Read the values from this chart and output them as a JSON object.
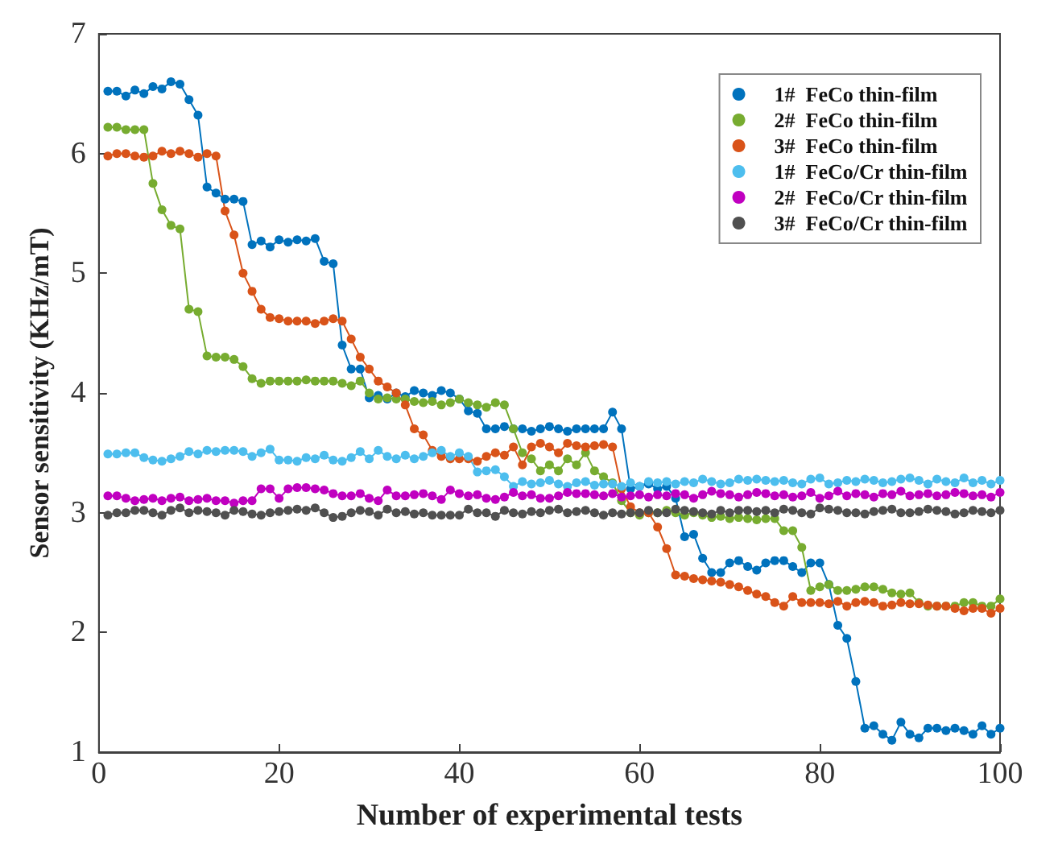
{
  "chart_data": {
    "type": "line",
    "xlabel": "Number of experimental tests",
    "ylabel": "Sensor sensitivity (KHz/mT)",
    "x": [
      1,
      2,
      3,
      4,
      5,
      6,
      7,
      8,
      9,
      10,
      11,
      12,
      13,
      14,
      15,
      16,
      17,
      18,
      19,
      20,
      21,
      22,
      23,
      24,
      25,
      26,
      27,
      28,
      29,
      30,
      31,
      32,
      33,
      34,
      35,
      36,
      37,
      38,
      39,
      40,
      41,
      42,
      43,
      44,
      45,
      46,
      47,
      48,
      49,
      50,
      51,
      52,
      53,
      54,
      55,
      56,
      57,
      58,
      59,
      60,
      61,
      62,
      63,
      64,
      65,
      66,
      67,
      68,
      69,
      70,
      71,
      72,
      73,
      74,
      75,
      76,
      77,
      78,
      79,
      80,
      81,
      82,
      83,
      84,
      85,
      86,
      87,
      88,
      89,
      90,
      91,
      92,
      93,
      94,
      95,
      96,
      97,
      98,
      99,
      100
    ],
    "series": [
      {
        "name": "1#  FeCo thin-film",
        "color": "#0072bd",
        "values": [
          6.52,
          6.52,
          6.48,
          6.53,
          6.5,
          6.56,
          6.54,
          6.6,
          6.58,
          6.45,
          6.32,
          5.72,
          5.67,
          5.62,
          5.62,
          5.6,
          5.24,
          5.27,
          5.22,
          5.28,
          5.26,
          5.28,
          5.27,
          5.29,
          5.1,
          5.08,
          4.4,
          4.2,
          4.2,
          3.96,
          3.98,
          3.95,
          4.0,
          3.97,
          4.02,
          4.0,
          3.98,
          4.02,
          4.0,
          3.95,
          3.85,
          3.83,
          3.7,
          3.7,
          3.72,
          3.7,
          3.7,
          3.68,
          3.7,
          3.72,
          3.7,
          3.68,
          3.7,
          3.7,
          3.7,
          3.7,
          3.84,
          3.7,
          3.2,
          3.22,
          3.24,
          3.2,
          3.22,
          3.12,
          2.8,
          2.82,
          2.62,
          2.5,
          2.5,
          2.58,
          2.6,
          2.55,
          2.52,
          2.58,
          2.6,
          2.6,
          2.55,
          2.5,
          2.58,
          2.58,
          2.4,
          2.06,
          1.95,
          1.59,
          1.2,
          1.22,
          1.15,
          1.1,
          1.25,
          1.15,
          1.12,
          1.2,
          1.2,
          1.18,
          1.2,
          1.18,
          1.15,
          1.22,
          1.15,
          1.2
        ]
      },
      {
        "name": "2#  FeCo thin-film",
        "color": "#77ac30",
        "values": [
          6.22,
          6.22,
          6.2,
          6.2,
          6.2,
          5.75,
          5.53,
          5.4,
          5.37,
          4.7,
          4.68,
          4.31,
          4.3,
          4.3,
          4.28,
          4.22,
          4.12,
          4.08,
          4.1,
          4.1,
          4.1,
          4.1,
          4.11,
          4.1,
          4.1,
          4.1,
          4.08,
          4.06,
          4.1,
          4.0,
          3.95,
          3.96,
          3.95,
          3.95,
          3.93,
          3.92,
          3.93,
          3.9,
          3.92,
          3.95,
          3.92,
          3.9,
          3.88,
          3.92,
          3.9,
          3.7,
          3.5,
          3.45,
          3.35,
          3.4,
          3.35,
          3.45,
          3.4,
          3.5,
          3.35,
          3.3,
          3.25,
          3.1,
          3.0,
          2.98,
          3.0,
          3.0,
          3.02,
          3.0,
          2.98,
          3.0,
          2.98,
          2.96,
          2.97,
          2.95,
          2.96,
          2.95,
          2.94,
          2.95,
          2.95,
          2.85,
          2.85,
          2.71,
          2.35,
          2.38,
          2.4,
          2.35,
          2.35,
          2.36,
          2.38,
          2.38,
          2.36,
          2.33,
          2.32,
          2.33,
          2.25,
          2.22,
          2.22,
          2.22,
          2.22,
          2.25,
          2.25,
          2.22,
          2.22,
          2.28
        ]
      },
      {
        "name": "3#  FeCo thin-film",
        "color": "#d95319",
        "values": [
          5.98,
          6.0,
          6.0,
          5.98,
          5.97,
          5.98,
          6.02,
          6.0,
          6.02,
          6.0,
          5.97,
          6.0,
          5.98,
          5.52,
          5.32,
          5.0,
          4.85,
          4.7,
          4.63,
          4.62,
          4.6,
          4.6,
          4.6,
          4.58,
          4.6,
          4.62,
          4.6,
          4.45,
          4.3,
          4.2,
          4.1,
          4.05,
          4.0,
          3.9,
          3.7,
          3.65,
          3.52,
          3.47,
          3.45,
          3.45,
          3.45,
          3.43,
          3.47,
          3.5,
          3.48,
          3.55,
          3.4,
          3.55,
          3.58,
          3.55,
          3.5,
          3.58,
          3.56,
          3.55,
          3.56,
          3.57,
          3.55,
          3.2,
          3.05,
          3.0,
          3.0,
          2.88,
          2.7,
          2.48,
          2.47,
          2.45,
          2.44,
          2.43,
          2.42,
          2.4,
          2.38,
          2.35,
          2.32,
          2.3,
          2.25,
          2.22,
          2.3,
          2.25,
          2.25,
          2.25,
          2.24,
          2.26,
          2.22,
          2.25,
          2.26,
          2.25,
          2.22,
          2.23,
          2.25,
          2.24,
          2.24,
          2.23,
          2.22,
          2.22,
          2.2,
          2.18,
          2.2,
          2.2,
          2.16,
          2.2
        ]
      },
      {
        "name": "1#  FeCo/Cr thin-film",
        "color": "#4dbeee",
        "values": [
          3.49,
          3.49,
          3.5,
          3.5,
          3.46,
          3.44,
          3.43,
          3.45,
          3.47,
          3.51,
          3.49,
          3.52,
          3.51,
          3.52,
          3.52,
          3.51,
          3.47,
          3.5,
          3.53,
          3.44,
          3.44,
          3.43,
          3.46,
          3.45,
          3.48,
          3.44,
          3.43,
          3.46,
          3.51,
          3.45,
          3.52,
          3.47,
          3.45,
          3.48,
          3.45,
          3.47,
          3.5,
          3.52,
          3.47,
          3.5,
          3.47,
          3.34,
          3.35,
          3.36,
          3.3,
          3.22,
          3.26,
          3.24,
          3.25,
          3.27,
          3.24,
          3.22,
          3.25,
          3.26,
          3.23,
          3.24,
          3.24,
          3.22,
          3.25,
          3.22,
          3.26,
          3.25,
          3.26,
          3.24,
          3.26,
          3.25,
          3.28,
          3.26,
          3.24,
          3.25,
          3.28,
          3.27,
          3.28,
          3.27,
          3.26,
          3.27,
          3.25,
          3.24,
          3.28,
          3.29,
          3.24,
          3.25,
          3.27,
          3.26,
          3.28,
          3.27,
          3.25,
          3.26,
          3.28,
          3.29,
          3.27,
          3.24,
          3.28,
          3.26,
          3.25,
          3.29,
          3.25,
          3.27,
          3.24,
          3.27
        ]
      },
      {
        "name": "2#  FeCo/Cr thin-film",
        "color": "#c000c0",
        "values": [
          3.14,
          3.14,
          3.12,
          3.1,
          3.11,
          3.12,
          3.1,
          3.12,
          3.13,
          3.1,
          3.11,
          3.12,
          3.1,
          3.1,
          3.08,
          3.1,
          3.1,
          3.2,
          3.2,
          3.12,
          3.2,
          3.21,
          3.21,
          3.2,
          3.19,
          3.16,
          3.14,
          3.14,
          3.16,
          3.12,
          3.1,
          3.19,
          3.14,
          3.14,
          3.15,
          3.16,
          3.14,
          3.11,
          3.19,
          3.16,
          3.14,
          3.15,
          3.12,
          3.11,
          3.13,
          3.17,
          3.14,
          3.15,
          3.12,
          3.12,
          3.14,
          3.17,
          3.16,
          3.16,
          3.15,
          3.14,
          3.16,
          3.13,
          3.14,
          3.15,
          3.13,
          3.15,
          3.14,
          3.16,
          3.15,
          3.12,
          3.15,
          3.18,
          3.16,
          3.15,
          3.13,
          3.15,
          3.17,
          3.16,
          3.14,
          3.15,
          3.13,
          3.14,
          3.17,
          3.12,
          3.14,
          3.18,
          3.14,
          3.16,
          3.15,
          3.13,
          3.16,
          3.15,
          3.18,
          3.14,
          3.15,
          3.16,
          3.14,
          3.15,
          3.17,
          3.16,
          3.14,
          3.15,
          3.13,
          3.17
        ]
      },
      {
        "name": "3#  FeCo/Cr thin-film",
        "color": "#505050",
        "values": [
          2.98,
          3.0,
          3.0,
          3.02,
          3.02,
          3.0,
          2.98,
          3.02,
          3.04,
          3.0,
          3.02,
          3.01,
          3.0,
          2.98,
          3.02,
          3.01,
          2.99,
          2.98,
          3.0,
          3.01,
          3.02,
          3.03,
          3.02,
          3.04,
          3.0,
          2.96,
          2.97,
          3.0,
          3.02,
          3.01,
          2.98,
          3.03,
          3.0,
          3.01,
          2.99,
          3.0,
          2.98,
          2.98,
          2.98,
          2.98,
          3.03,
          3.0,
          3.0,
          2.97,
          3.02,
          3.0,
          2.99,
          3.01,
          3.0,
          3.02,
          3.03,
          3.0,
          3.01,
          3.02,
          3.0,
          2.98,
          3.0,
          2.99,
          3.0,
          3.0,
          3.02,
          3.0,
          3.0,
          3.03,
          3.02,
          3.01,
          3.0,
          2.99,
          3.02,
          3.0,
          3.02,
          3.02,
          3.01,
          3.02,
          3.0,
          3.03,
          3.02,
          3.0,
          2.99,
          3.04,
          3.03,
          3.02,
          3.0,
          3.0,
          2.99,
          3.01,
          3.02,
          3.03,
          3.0,
          3.0,
          3.01,
          3.03,
          3.02,
          3.01,
          2.99,
          3.0,
          3.02,
          3.01,
          3.0,
          3.02
        ]
      }
    ],
    "xlim": [
      0,
      100
    ],
    "ylim": [
      1,
      7
    ],
    "xticks": [
      0,
      20,
      40,
      60,
      80,
      100
    ],
    "yticks": [
      1,
      2,
      3,
      4,
      5,
      6,
      7
    ],
    "grid": false,
    "legend": "top right",
    "marker": "circle",
    "line_style": "solid"
  }
}
